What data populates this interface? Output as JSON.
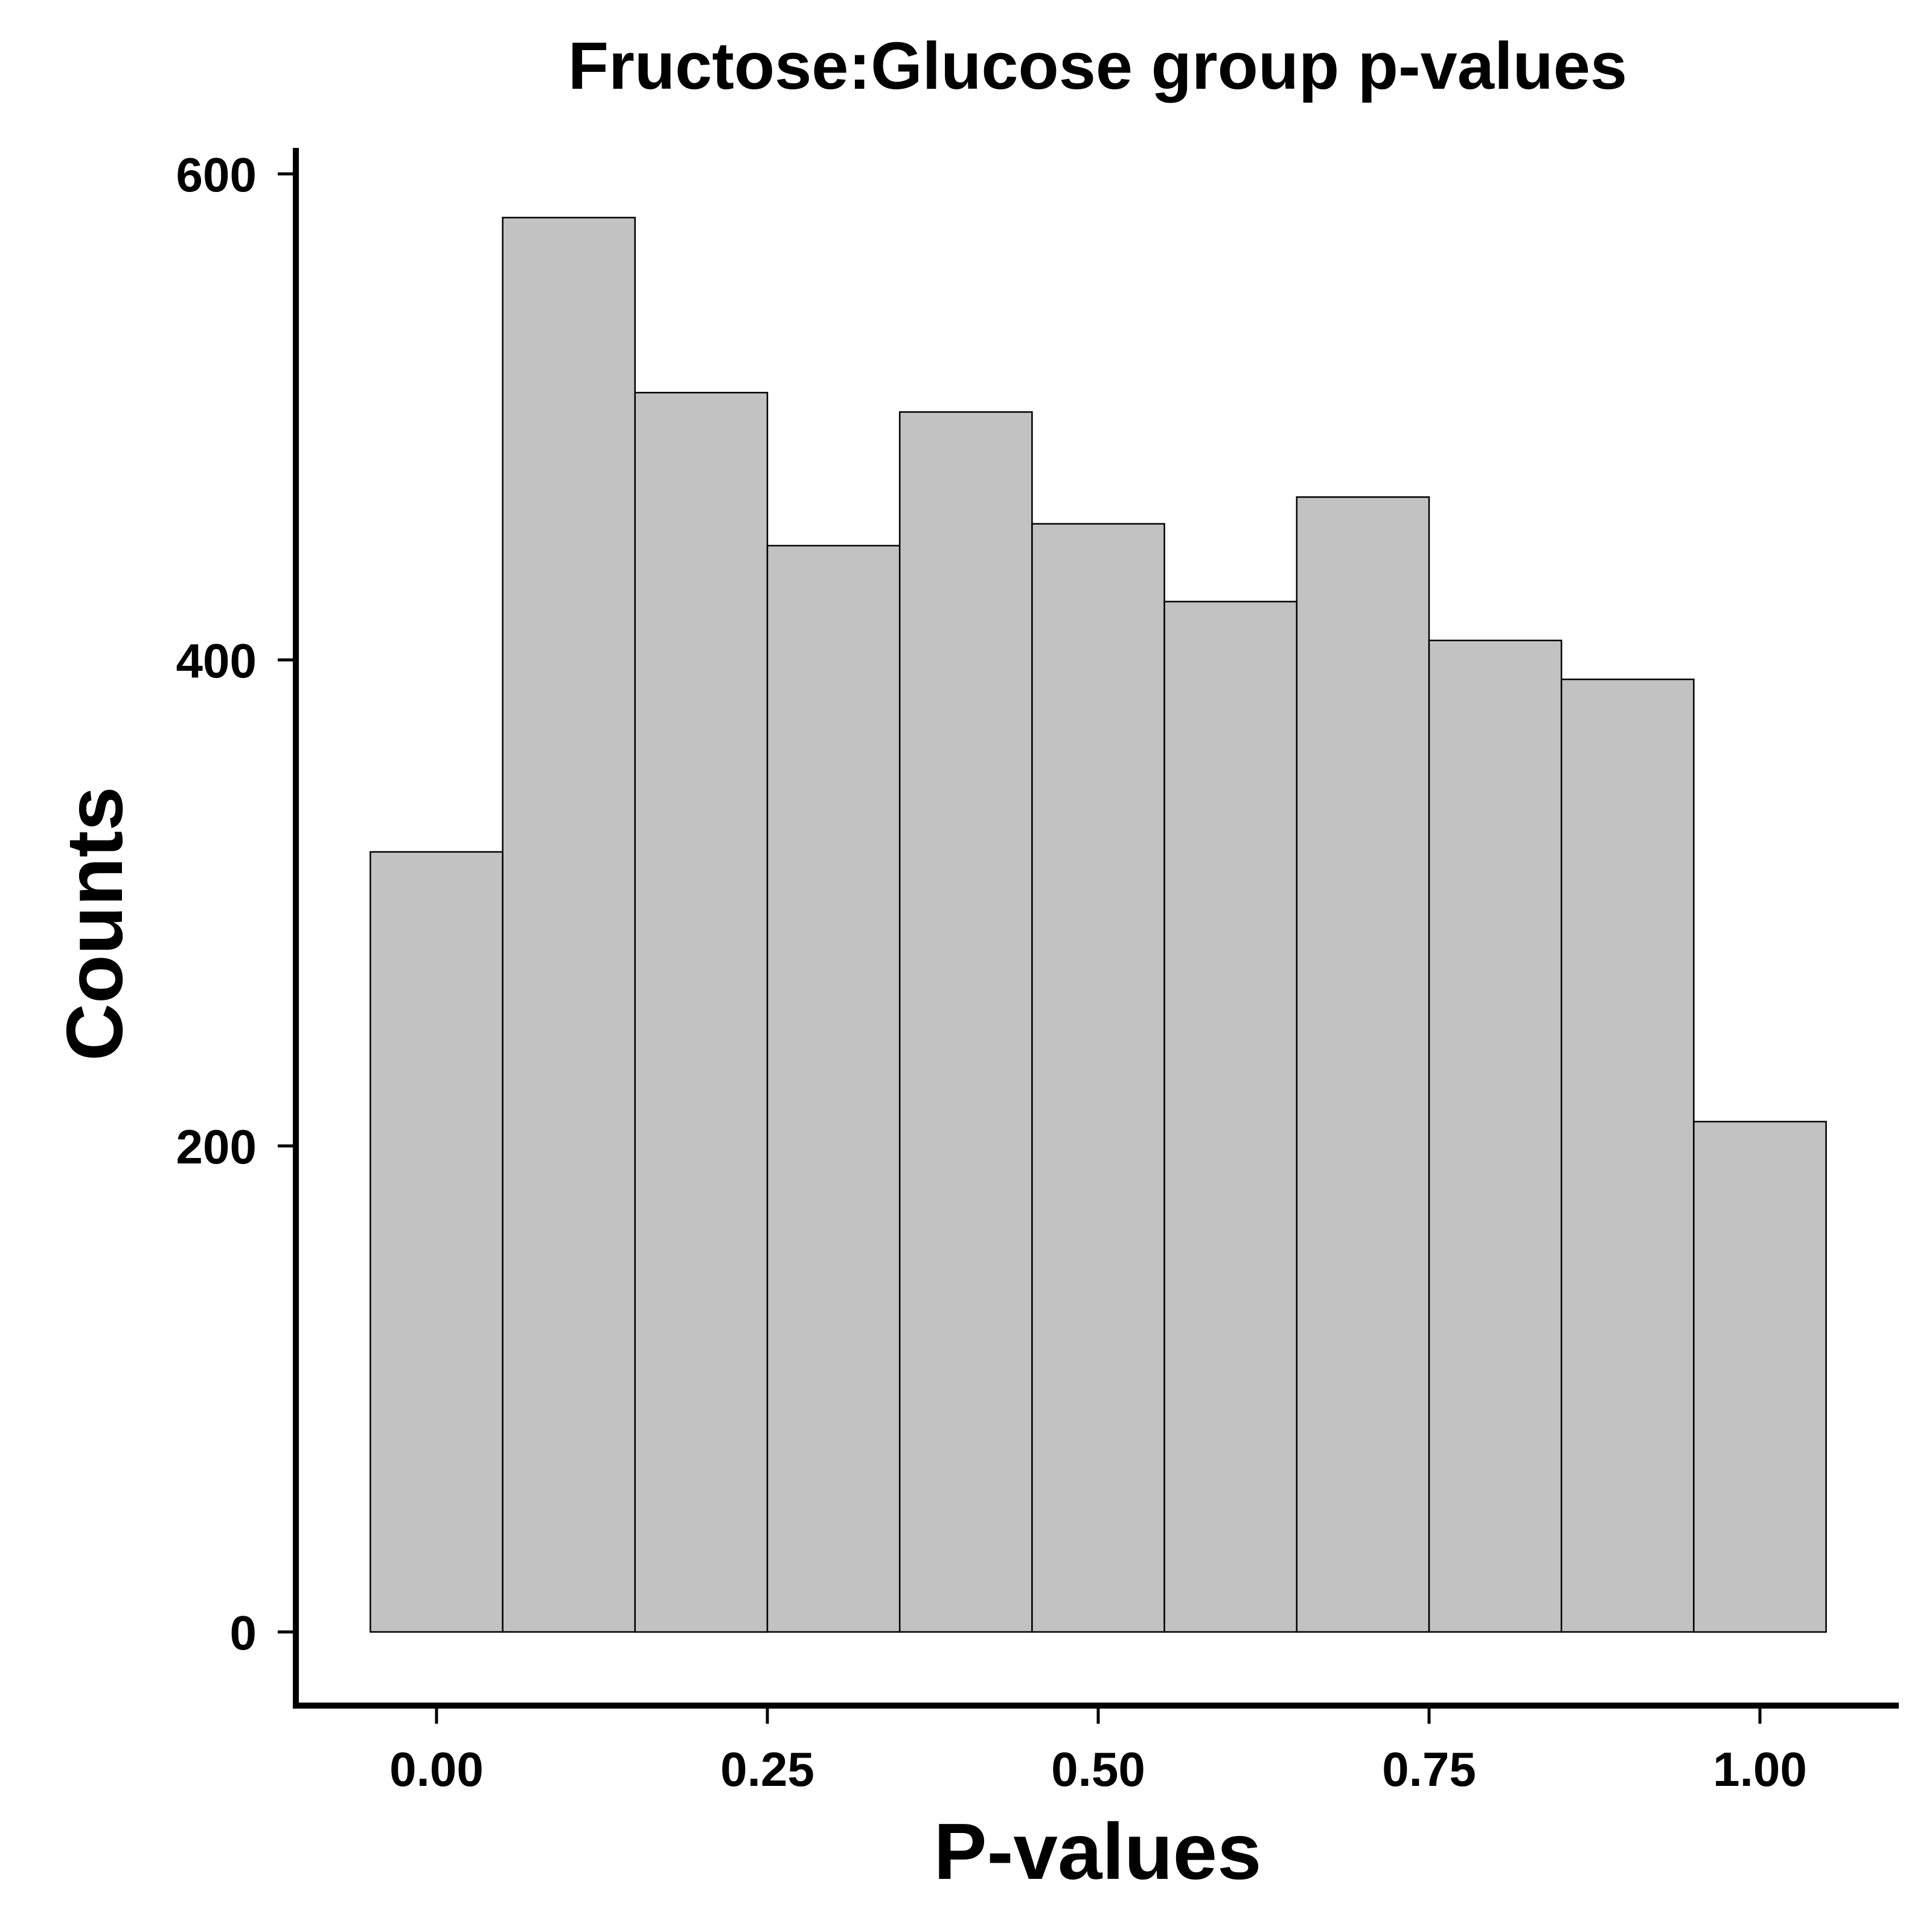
{
  "chart_data": {
    "type": "bar",
    "title": "Fructose:Glucose group p-values",
    "xlabel": "P-values",
    "ylabel": "Counts",
    "bins": [
      {
        "x0": -0.05,
        "x1": 0.05,
        "count": 321
      },
      {
        "x0": 0.05,
        "x1": 0.15,
        "count": 582
      },
      {
        "x0": 0.15,
        "x1": 0.25,
        "count": 510
      },
      {
        "x0": 0.25,
        "x1": 0.35,
        "count": 447
      },
      {
        "x0": 0.35,
        "x1": 0.45,
        "count": 502
      },
      {
        "x0": 0.45,
        "x1": 0.55,
        "count": 456
      },
      {
        "x0": 0.55,
        "x1": 0.65,
        "count": 424
      },
      {
        "x0": 0.65,
        "x1": 0.75,
        "count": 467
      },
      {
        "x0": 0.75,
        "x1": 0.85,
        "count": 408
      },
      {
        "x0": 0.85,
        "x1": 0.95,
        "count": 392
      },
      {
        "x0": 0.95,
        "x1": 1.05,
        "count": 210
      }
    ],
    "xticks": [
      {
        "value": 0,
        "label": "0.00"
      },
      {
        "value": 0.25,
        "label": "0.25"
      },
      {
        "value": 0.5,
        "label": "0.50"
      },
      {
        "value": 0.75,
        "label": "0.75"
      },
      {
        "value": 1,
        "label": "1.00"
      }
    ],
    "yticks": [
      {
        "value": 0,
        "label": "0"
      },
      {
        "value": 200,
        "label": "200"
      },
      {
        "value": 400,
        "label": "400"
      },
      {
        "value": 600,
        "label": "600"
      }
    ],
    "xlim": [
      -0.05,
      1.05
    ],
    "ylim": [
      0,
      600
    ],
    "grid": false,
    "legend": "none",
    "bar_fill": "#c2c2c2",
    "bar_stroke": "#000000"
  }
}
